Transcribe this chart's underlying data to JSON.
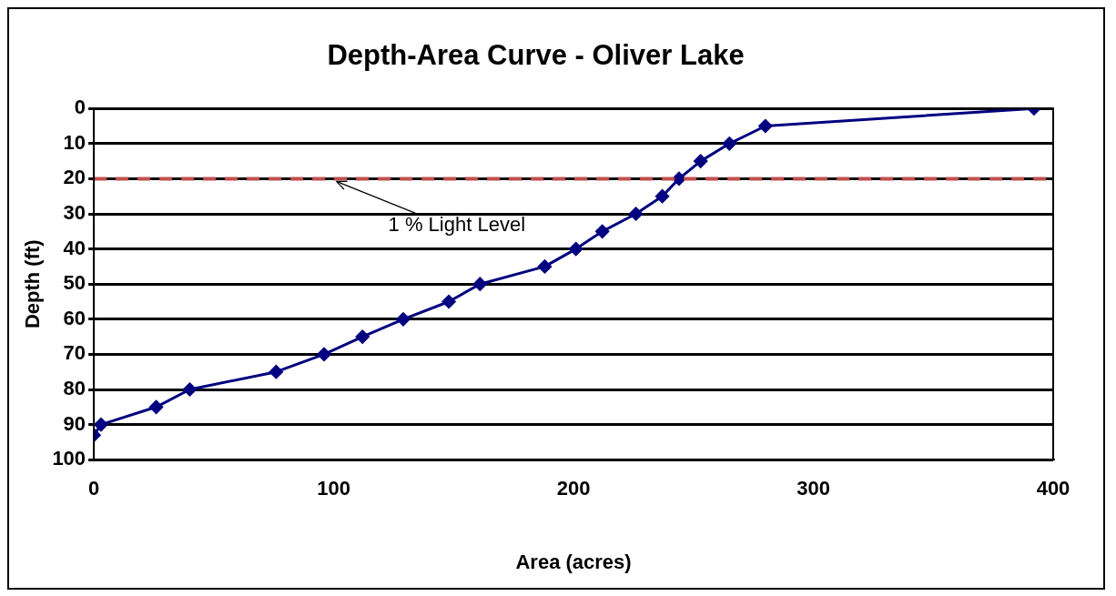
{
  "chart_data": {
    "type": "line",
    "title": "Depth-Area Curve - Oliver Lake",
    "xlabel": "Area (acres)",
    "ylabel": "Depth (ft)",
    "xlim": [
      0,
      400
    ],
    "xticks": [
      0,
      100,
      200,
      300,
      400
    ],
    "ylim": [
      100,
      0
    ],
    "yticks": [
      0,
      10,
      20,
      30,
      40,
      50,
      60,
      70,
      80,
      90,
      100
    ],
    "grid": "y",
    "legend": false,
    "marker": "diamond",
    "line_style": "solid",
    "series": [
      {
        "color": "#000080",
        "x": [
          392,
          280,
          265,
          253,
          244,
          237,
          226,
          212,
          201,
          188,
          161,
          148,
          129,
          112,
          96,
          76,
          40,
          26,
          3,
          0
        ],
        "values": [
          0,
          5,
          10,
          15,
          20,
          25,
          30,
          35,
          40,
          45,
          50,
          55,
          60,
          65,
          70,
          75,
          80,
          85,
          90,
          93
        ]
      }
    ],
    "ref_lines": [
      {
        "axis": "y",
        "value": 20,
        "color": "#c0504d",
        "line_style": "dashed"
      }
    ],
    "annotations": [
      {
        "text": "1 % Light Level",
        "x": 100,
        "y": 20
      }
    ]
  }
}
